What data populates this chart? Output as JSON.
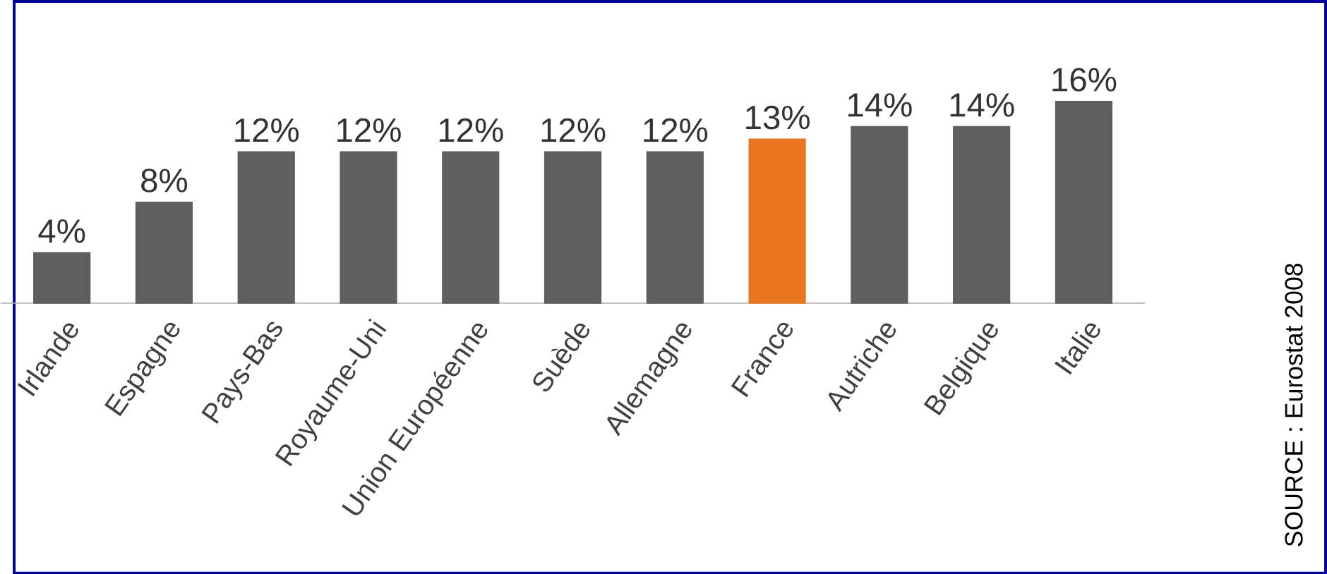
{
  "chart_data": {
    "type": "bar",
    "categories": [
      "Irlande",
      "Espagne",
      "Pays-Bas",
      "Royaume-Uni",
      "Union Européenne",
      "Suède",
      "Allemagne",
      "France",
      "Autriche",
      "Belgique",
      "Italie"
    ],
    "values": [
      4,
      8,
      12,
      12,
      12,
      12,
      12,
      13,
      14,
      14,
      16
    ],
    "value_labels": [
      "4%",
      "8%",
      "12%",
      "12%",
      "12%",
      "12%",
      "12%",
      "13%",
      "14%",
      "14%",
      "16%"
    ],
    "colors": [
      "#5f5f5f",
      "#5f5f5f",
      "#5f5f5f",
      "#5f5f5f",
      "#5f5f5f",
      "#5f5f5f",
      "#5f5f5f",
      "#e8761e",
      "#5f5f5f",
      "#5f5f5f",
      "#5f5f5f"
    ],
    "annotations": [
      "SOURCE : Eurostat 2008"
    ]
  }
}
